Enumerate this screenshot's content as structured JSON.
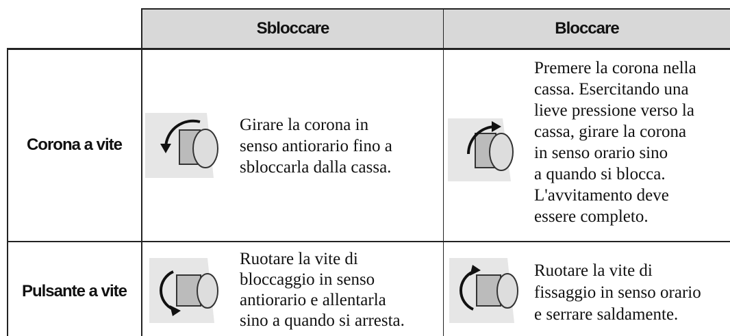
{
  "table": {
    "header": [
      "Sbloccare",
      "Bloccare"
    ],
    "rows": [
      {
        "label": "Corona a vite",
        "cells": [
          {
            "lines": [
              "Girare la corona in",
              "senso antiorario fino a",
              "sbloccarla dalla cassa."
            ]
          },
          {
            "lines": [
              "Premere la corona nella",
              "cassa. Esercitando una",
              "lieve pressione verso la",
              "cassa, girare la corona",
              "in senso orario sino",
              "a quando si blocca.",
              "L'avvitamento deve",
              "essere completo."
            ]
          }
        ]
      },
      {
        "label": "Pulsante a vite",
        "cells": [
          {
            "lines": [
              "Ruotare la vite di",
              "bloccaggio in senso",
              "antiorario e allentarla",
              "sino a quando si arresta."
            ]
          },
          {
            "lines": [
              "Ruotare la vite di",
              "fissaggio in senso orario",
              "e serrare saldamente."
            ]
          }
        ]
      }
    ]
  }
}
